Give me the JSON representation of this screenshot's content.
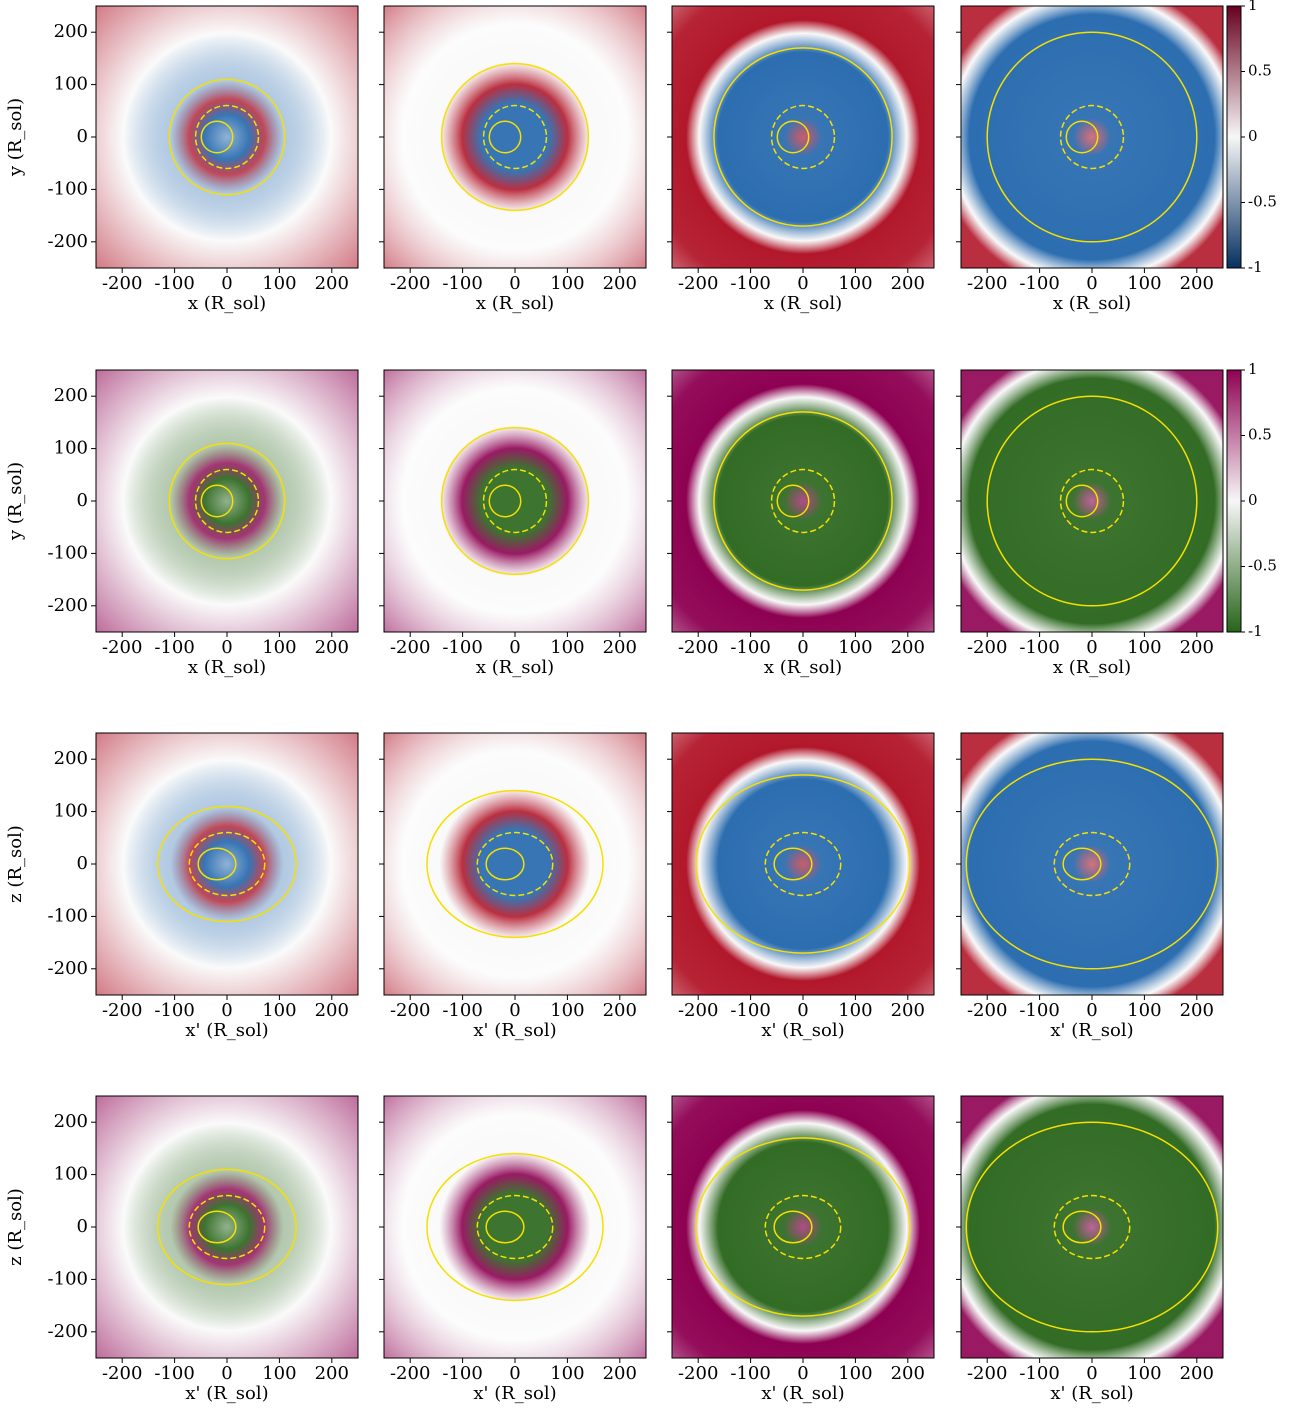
{
  "chart_data": [
    {
      "type": "heatmap",
      "colors": [
        "#2166ac",
        "#f7f7f7",
        "#b2182b"
      ],
      "xlabel": "x (R_sol)",
      "ylabel": "y (R_sol)",
      "xlim": [
        -250,
        250
      ],
      "xticks": [
        -200,
        -100,
        0,
        100,
        200
      ],
      "ylim": [
        -250,
        250
      ],
      "yticks": [
        -200,
        -100,
        0,
        100,
        200
      ]
    },
    {
      "type": "heatmap",
      "colors": [
        "#2166ac",
        "#f7f7f7",
        "#b2182b"
      ],
      "xlabel": "x (R_sol)",
      "xlim": [
        -250,
        250
      ],
      "xticks": [
        -200,
        -100,
        0,
        100,
        200
      ],
      "ylim": [
        -250,
        250
      ],
      "yticks": [
        -200,
        -100,
        0,
        100,
        200
      ]
    },
    {
      "type": "heatmap",
      "colors": [
        "#2166ac",
        "#f7f7f7",
        "#b2182b"
      ],
      "xlabel": "x (R_sol)",
      "xlim": [
        -250,
        250
      ],
      "xticks": [
        -200,
        -100,
        0,
        100,
        200
      ],
      "ylim": [
        -250,
        250
      ],
      "yticks": [
        -200,
        -100,
        0,
        100,
        200
      ]
    },
    {
      "type": "heatmap",
      "colors": [
        "#2166ac",
        "#f7f7f7",
        "#b2182b"
      ],
      "xlabel": "x (R_sol)",
      "xlim": [
        -250,
        250
      ],
      "xticks": [
        -200,
        -100,
        0,
        100,
        200
      ],
      "ylim": [
        -250,
        250
      ],
      "yticks": [
        -200,
        -100,
        0,
        100,
        200
      ]
    },
    {
      "type": "heatmap",
      "colors": [
        "#276419",
        "#f7f7f7",
        "#8e0152"
      ],
      "xlabel": "x (R_sol)",
      "ylabel": "y (R_sol)",
      "xlim": [
        -250,
        250
      ],
      "xticks": [
        -200,
        -100,
        0,
        100,
        200
      ],
      "ylim": [
        -250,
        250
      ],
      "yticks": [
        -200,
        -100,
        0,
        100,
        200
      ]
    },
    {
      "type": "heatmap",
      "colors": [
        "#276419",
        "#f7f7f7",
        "#8e0152"
      ],
      "xlabel": "x (R_sol)",
      "xlim": [
        -250,
        250
      ],
      "xticks": [
        -200,
        -100,
        0,
        100,
        200
      ],
      "ylim": [
        -250,
        250
      ],
      "yticks": [
        -200,
        -100,
        0,
        100,
        200
      ]
    },
    {
      "type": "heatmap",
      "colors": [
        "#276419",
        "#f7f7f7",
        "#8e0152"
      ],
      "xlabel": "x (R_sol)",
      "xlim": [
        -250,
        250
      ],
      "xticks": [
        -200,
        -100,
        0,
        100,
        200
      ],
      "ylim": [
        -250,
        250
      ],
      "yticks": [
        -200,
        -100,
        0,
        100,
        200
      ]
    },
    {
      "type": "heatmap",
      "colors": [
        "#276419",
        "#f7f7f7",
        "#8e0152"
      ],
      "xlabel": "x (R_sol)",
      "xlim": [
        -250,
        250
      ],
      "xticks": [
        -200,
        -100,
        0,
        100,
        200
      ],
      "ylim": [
        -250,
        250
      ],
      "yticks": [
        -200,
        -100,
        0,
        100,
        200
      ]
    },
    {
      "type": "heatmap",
      "colors": [
        "#2166ac",
        "#f7f7f7",
        "#b2182b"
      ],
      "xlabel": "x' (R_sol)",
      "ylabel": "z (R_sol)",
      "xlim": [
        -250,
        250
      ],
      "xticks": [
        -200,
        -100,
        0,
        100,
        200
      ],
      "ylim": [
        -250,
        250
      ],
      "yticks": [
        -200,
        -100,
        0,
        100,
        200
      ]
    },
    {
      "type": "heatmap",
      "colors": [
        "#2166ac",
        "#f7f7f7",
        "#b2182b"
      ],
      "xlabel": "x' (R_sol)",
      "xlim": [
        -250,
        250
      ],
      "xticks": [
        -200,
        -100,
        0,
        100,
        200
      ],
      "ylim": [
        -250,
        250
      ],
      "yticks": [
        -200,
        -100,
        0,
        100,
        200
      ]
    },
    {
      "type": "heatmap",
      "colors": [
        "#2166ac",
        "#f7f7f7",
        "#b2182b"
      ],
      "xlabel": "x' (R_sol)",
      "xlim": [
        -250,
        250
      ],
      "xticks": [
        -200,
        -100,
        0,
        100,
        200
      ],
      "ylim": [
        -250,
        250
      ],
      "yticks": [
        -200,
        -100,
        0,
        100,
        200
      ]
    },
    {
      "type": "heatmap",
      "colors": [
        "#2166ac",
        "#f7f7f7",
        "#b2182b"
      ],
      "xlabel": "x' (R_sol)",
      "xlim": [
        -250,
        250
      ],
      "xticks": [
        -200,
        -100,
        0,
        100,
        200
      ],
      "ylim": [
        -250,
        250
      ],
      "yticks": [
        -200,
        -100,
        0,
        100,
        200
      ]
    },
    {
      "type": "heatmap",
      "colors": [
        "#276419",
        "#f7f7f7",
        "#8e0152"
      ],
      "xlabel": "x' (R_sol)",
      "ylabel": "z (R_sol)",
      "xlim": [
        -250,
        250
      ],
      "xticks": [
        -200,
        -100,
        0,
        100,
        200
      ],
      "ylim": [
        -250,
        250
      ],
      "yticks": [
        -200,
        -100,
        0,
        100,
        200
      ]
    },
    {
      "type": "heatmap",
      "colors": [
        "#276419",
        "#f7f7f7",
        "#8e0152"
      ],
      "xlabel": "x' (R_sol)",
      "xlim": [
        -250,
        250
      ],
      "xticks": [
        -200,
        -100,
        0,
        100,
        200
      ],
      "ylim": [
        -250,
        250
      ],
      "yticks": [
        -200,
        -100,
        0,
        100,
        200
      ]
    },
    {
      "type": "heatmap",
      "colors": [
        "#276419",
        "#f7f7f7",
        "#8e0152"
      ],
      "xlabel": "x' (R_sol)",
      "xlim": [
        -250,
        250
      ],
      "xticks": [
        -200,
        -100,
        0,
        100,
        200
      ],
      "ylim": [
        -250,
        250
      ],
      "yticks": [
        -200,
        -100,
        0,
        100,
        200
      ]
    },
    {
      "type": "heatmap",
      "colors": [
        "#276419",
        "#f7f7f7",
        "#8e0152"
      ],
      "xlabel": "x' (R_sol)",
      "xlim": [
        -250,
        250
      ],
      "xticks": [
        -200,
        -100,
        0,
        100,
        200
      ],
      "ylim": [
        -250,
        250
      ],
      "yticks": [
        -200,
        -100,
        0,
        100,
        200
      ]
    },
    {
      "type": "colorbar",
      "colors": [
        "#053061",
        "#f7f7f7",
        "#67001f"
      ],
      "ylim": [
        -1,
        1
      ],
      "yticks": [
        -1,
        -0.5,
        0,
        0.5,
        1
      ]
    },
    {
      "type": "colorbar",
      "colors": [
        "#276419",
        "#f7f7f7",
        "#8e0152"
      ],
      "ylim": [
        -1,
        1
      ],
      "yticks": [
        -1,
        -0.5,
        0,
        0.5,
        1
      ]
    }
  ]
}
